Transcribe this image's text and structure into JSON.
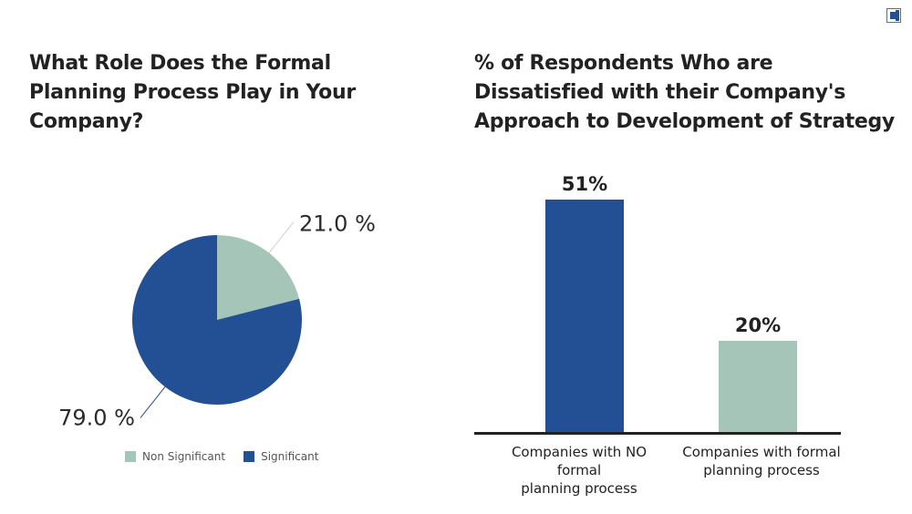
{
  "colors": {
    "dark_blue": "#234f94",
    "sage": "#a4c5b8",
    "axis": "#222222"
  },
  "logo": {
    "icon": "brand-logo-icon"
  },
  "chart_data": [
    {
      "type": "pie",
      "title": "What Role Does the Formal Planning Process Play in Your Company?",
      "slices": [
        {
          "name": "Non Significant",
          "value": 21.0,
          "label": "21.0 %",
          "color": "#a4c5b8"
        },
        {
          "name": "Significant",
          "value": 79.0,
          "label": "79.0 %",
          "color": "#234f94"
        }
      ],
      "legend": {
        "position": "bottom",
        "items": [
          "Non Significant",
          "Significant"
        ]
      }
    },
    {
      "type": "bar",
      "title": "% of Respondents Who are Dissatisfied with their Company's Approach to Development of Strategy",
      "categories": [
        "Companies with NO formal planning process",
        "Companies with formal planning process"
      ],
      "category_lines": [
        [
          "Companies with NO formal",
          "planning process"
        ],
        [
          "Companies with formal",
          "planning process"
        ]
      ],
      "values": [
        51,
        20
      ],
      "value_labels": [
        "51%",
        "20%"
      ],
      "colors": [
        "#234f94",
        "#a4c5b8"
      ],
      "ylim": [
        0,
        60
      ],
      "grid": false
    }
  ]
}
